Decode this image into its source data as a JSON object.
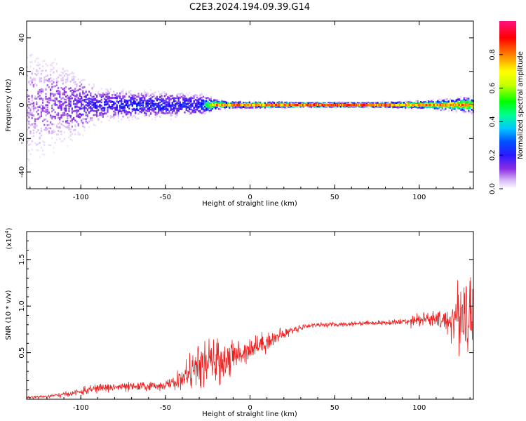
{
  "figure": {
    "title": "C2E3.2024.194.09.39.G14"
  },
  "colors": {
    "snr_line": "#ee2222",
    "background": "#ffffff",
    "colormap": [
      "#ffffff",
      "#d8b8f8",
      "#8a2be2",
      "#3b1fff",
      "#0000ff",
      "#00c8ff",
      "#00ff80",
      "#00ff00",
      "#c8ff00",
      "#ffff00",
      "#ff8000",
      "#ff0000",
      "#ff00c0"
    ]
  },
  "chart_data": [
    {
      "type": "heatmap",
      "title": "",
      "xlabel": "Height of straight line (km)",
      "ylabel": "Frequency (Hz)",
      "xlim": [
        -132,
        132
      ],
      "ylim": [
        -50,
        50
      ],
      "xticks": [
        "-100",
        "-50",
        "0",
        "50",
        "100"
      ],
      "xtick_values": [
        -100,
        -50,
        0,
        50,
        100
      ],
      "yticks": [
        "-40",
        "-20",
        "0",
        "20",
        "40"
      ],
      "ytick_values": [
        -40,
        -20,
        0,
        20,
        40
      ],
      "colorbar": {
        "label": "Normalized spectral amplitude",
        "range": [
          0,
          1
        ],
        "ticks": [
          "0.0",
          "0.2",
          "0.4",
          "0.6",
          "0.8"
        ],
        "tick_values": [
          0.0,
          0.2,
          0.4,
          0.6,
          0.8
        ]
      },
      "description_points": {
        "x": [
          -130,
          -110,
          -90,
          -70,
          -50,
          -30,
          -20,
          -10,
          0,
          10,
          30,
          50,
          70,
          90,
          110,
          130
        ],
        "frequency_spread": [
          45,
          30,
          12,
          10,
          9,
          8,
          3,
          2,
          2,
          2,
          1.5,
          1.5,
          1.5,
          2,
          3,
          5
        ],
        "peak_amplitude": [
          0.15,
          0.2,
          0.3,
          0.35,
          0.35,
          0.35,
          0.85,
          0.85,
          0.85,
          0.85,
          0.9,
          0.9,
          0.9,
          0.85,
          0.85,
          0.85
        ]
      }
    },
    {
      "type": "line",
      "title": "",
      "xlabel": "Height of straight line (km)",
      "ylabel": "SNR (10 * v/v)",
      "y_multiplier": "(x10",
      "y_multiplier_exp": "4",
      "y_multiplier_close": ")",
      "xlim": [
        -132,
        132
      ],
      "ylim": [
        0,
        1.8
      ],
      "xticks": [
        "-100",
        "-50",
        "0",
        "50",
        "100"
      ],
      "xtick_values": [
        -100,
        -50,
        0,
        50,
        100
      ],
      "yticks": [
        "0.5",
        "1.0",
        "1.5"
      ],
      "ytick_values": [
        0.5,
        1.0,
        1.5
      ],
      "series": [
        {
          "x": [
            -132,
            -120,
            -110,
            -100,
            -90,
            -80,
            -70,
            -60,
            -50,
            -45,
            -40,
            -35,
            -30,
            -25,
            -20,
            -15,
            -10,
            -5,
            0,
            5,
            10,
            15,
            20,
            25,
            30,
            35,
            40,
            45,
            50,
            60,
            70,
            80,
            90,
            95,
            100,
            105,
            110,
            115,
            120,
            125,
            128,
            132
          ],
          "y": [
            0.02,
            0.03,
            0.05,
            0.08,
            0.12,
            0.13,
            0.13,
            0.14,
            0.15,
            0.18,
            0.22,
            0.3,
            0.35,
            0.38,
            0.4,
            0.42,
            0.45,
            0.5,
            0.55,
            0.58,
            0.62,
            0.66,
            0.7,
            0.74,
            0.77,
            0.79,
            0.8,
            0.8,
            0.8,
            0.81,
            0.82,
            0.82,
            0.83,
            0.85,
            0.86,
            0.86,
            0.85,
            0.84,
            0.86,
            0.9,
            1.0,
            0.9
          ],
          "noise": [
            0.01,
            0.015,
            0.02,
            0.03,
            0.04,
            0.04,
            0.04,
            0.04,
            0.04,
            0.06,
            0.1,
            0.14,
            0.18,
            0.2,
            0.2,
            0.18,
            0.16,
            0.12,
            0.1,
            0.1,
            0.08,
            0.07,
            0.05,
            0.03,
            0.03,
            0.02,
            0.02,
            0.02,
            0.02,
            0.02,
            0.02,
            0.02,
            0.03,
            0.05,
            0.06,
            0.07,
            0.08,
            0.1,
            0.2,
            0.35,
            0.45,
            0.45
          ]
        }
      ]
    }
  ]
}
